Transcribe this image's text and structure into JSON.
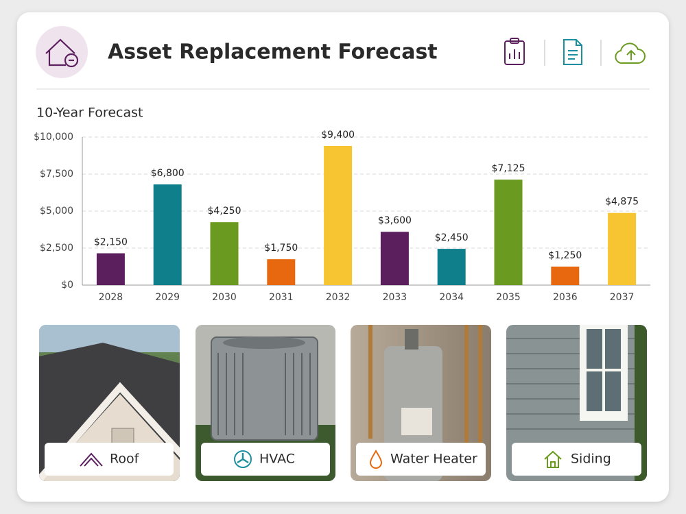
{
  "header": {
    "title": "Asset Replacement Forecast"
  },
  "chart_data": {
    "type": "bar",
    "title": "10-Year Forecast",
    "categories": [
      "2028",
      "2029",
      "2030",
      "2031",
      "2032",
      "2033",
      "2034",
      "2035",
      "2036",
      "2037"
    ],
    "values": [
      2150,
      6800,
      4250,
      1750,
      9400,
      3600,
      2450,
      7125,
      1250,
      4875
    ],
    "value_labels": [
      "$2,150",
      "$6,800",
      "$4,250",
      "$1,750",
      "$9,400",
      "$3,600",
      "$2,450",
      "$7,125",
      "$1,250",
      "$4,875"
    ],
    "colors": [
      "#5b1f5e",
      "#0f7f8c",
      "#6a9a1f",
      "#e8680f",
      "#f7c531",
      "#5b1f5e",
      "#0f7f8c",
      "#6a9a1f",
      "#e8680f",
      "#f7c531"
    ],
    "ylim": [
      0,
      10000
    ],
    "yticks": [
      {
        "value": 0,
        "label": "$0"
      },
      {
        "value": 2500,
        "label": "$2,500"
      },
      {
        "value": 5000,
        "label": "$5,000"
      },
      {
        "value": 7500,
        "label": "$7,500"
      },
      {
        "value": 10000,
        "label": "$10,000"
      }
    ],
    "grid": true
  },
  "cards": [
    {
      "label": "Roof"
    },
    {
      "label": "HVAC"
    },
    {
      "label": "Water Heater"
    },
    {
      "label": "Siding"
    }
  ]
}
